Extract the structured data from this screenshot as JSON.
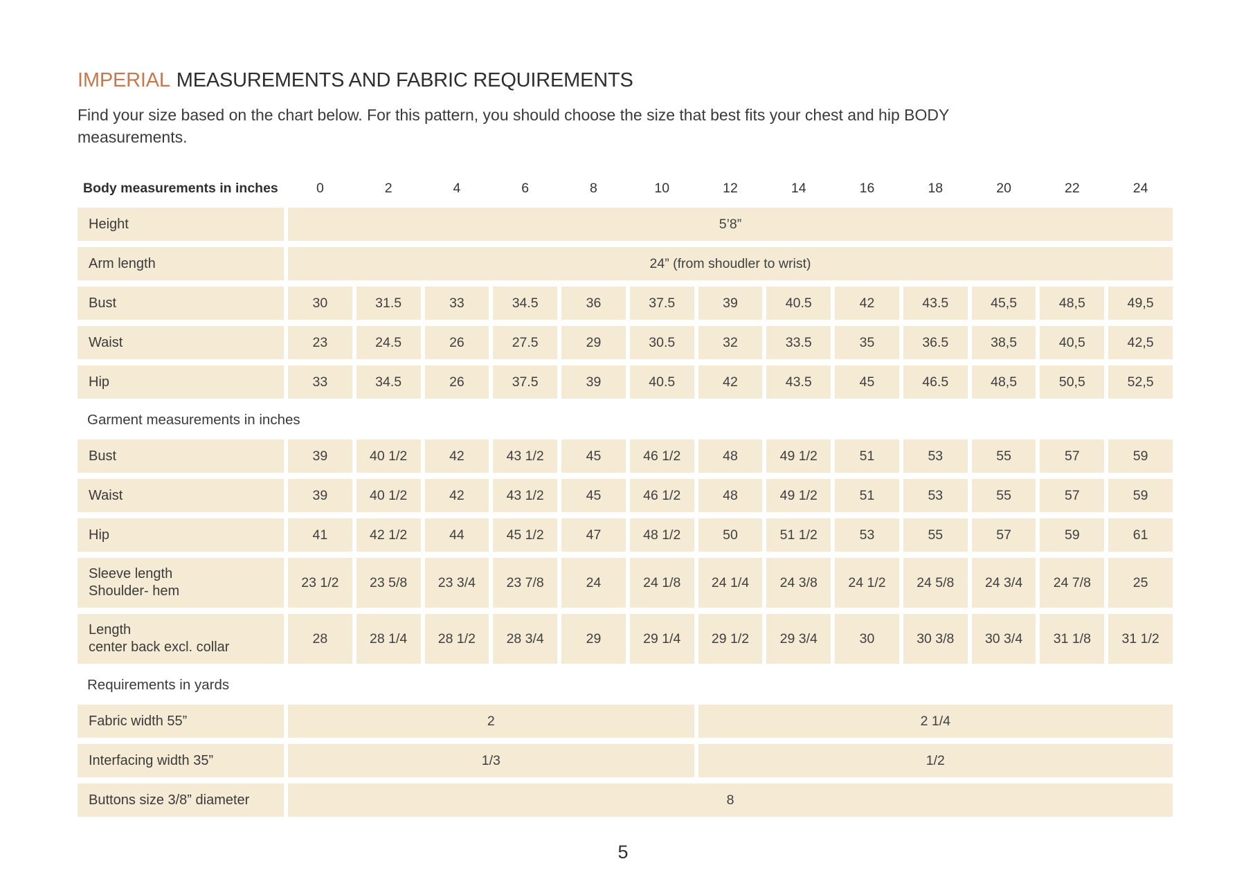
{
  "page": {
    "title": {
      "highlight": "IMPERIAL",
      "rest": "MEASUREMENTS AND FABRIC REQUIREMENTS"
    },
    "subtitle": "Find your size based on the chart below. For this pattern, you should choose the size that best fits your chest and hip BODY\nmeasurements.",
    "page_number": "5"
  },
  "colors": {
    "accent": "#c8784e",
    "cell_background": "#f5ebd5",
    "text": "#3a3a3a"
  },
  "chart_data": {
    "type": "table",
    "size_header": {
      "label": "Body measurements in inches",
      "sizes": [
        "0",
        "2",
        "4",
        "6",
        "8",
        "10",
        "12",
        "14",
        "16",
        "18",
        "20",
        "22",
        "24"
      ]
    },
    "sections": [
      {
        "heading": null,
        "rows": [
          {
            "label": "Height",
            "spans": [
              {
                "cols": 13,
                "value": "5’8”"
              }
            ]
          },
          {
            "label": "Arm length",
            "spans": [
              {
                "cols": 13,
                "value": "24” (from shoudler to wrist)"
              }
            ]
          },
          {
            "label": "Bust",
            "values": [
              "30",
              "31.5",
              "33",
              "34.5",
              "36",
              "37.5",
              "39",
              "40.5",
              "42",
              "43.5",
              "45,5",
              "48,5",
              "49,5"
            ]
          },
          {
            "label": "Waist",
            "values": [
              "23",
              "24.5",
              "26",
              "27.5",
              "29",
              "30.5",
              "32",
              "33.5",
              "35",
              "36.5",
              "38,5",
              "40,5",
              "42,5"
            ]
          },
          {
            "label": "Hip",
            "values": [
              "33",
              "34.5",
              "26",
              "37.5",
              "39",
              "40.5",
              "42",
              "43.5",
              "45",
              "46.5",
              "48,5",
              "50,5",
              "52,5"
            ]
          }
        ]
      },
      {
        "heading": "Garment measurements in inches",
        "rows": [
          {
            "label": "Bust",
            "values": [
              "39",
              "40 1/2",
              "42",
              "43 1/2",
              "45",
              "46 1/2",
              "48",
              "49 1/2",
              "51",
              "53",
              "55",
              "57",
              "59"
            ]
          },
          {
            "label": "Waist",
            "values": [
              "39",
              "40 1/2",
              "42",
              "43 1/2",
              "45",
              "46 1/2",
              "48",
              "49 1/2",
              "51",
              "53",
              "55",
              "57",
              "59"
            ]
          },
          {
            "label": "Hip",
            "values": [
              "41",
              "42 1/2",
              "44",
              "45 1/2",
              "47",
              "48 1/2",
              "50",
              "51 1/2",
              "53",
              "55",
              "57",
              "59",
              "61"
            ]
          },
          {
            "label": "Sleeve length",
            "label2": "Shoulder- hem",
            "values": [
              "23 1/2",
              "23 5/8",
              "23 3/4",
              "23 7/8",
              "24",
              "24 1/8",
              "24 1/4",
              "24 3/8",
              "24 1/2",
              "24 5/8",
              "24 3/4",
              "24 7/8",
              "25"
            ]
          },
          {
            "label": "Length",
            "label2": "center back excl. collar",
            "values": [
              "28",
              "28 1/4",
              "28 1/2",
              "28 3/4",
              "29",
              "29 1/4",
              "29 1/2",
              "29 3/4",
              "30",
              "30 3/8",
              "30 3/4",
              "31 1/8",
              "31 1/2"
            ]
          }
        ]
      },
      {
        "heading": "Requirements in yards",
        "rows": [
          {
            "label": "Fabric width 55”",
            "spans": [
              {
                "cols": 6,
                "value": "2"
              },
              {
                "cols": 7,
                "value": "2 1/4"
              }
            ]
          },
          {
            "label": "Interfacing width 35”",
            "spans": [
              {
                "cols": 6,
                "value": "1/3"
              },
              {
                "cols": 7,
                "value": "1/2"
              }
            ]
          },
          {
            "label": "Buttons size 3/8” diameter",
            "spans": [
              {
                "cols": 13,
                "value": "8"
              }
            ]
          }
        ]
      }
    ]
  }
}
